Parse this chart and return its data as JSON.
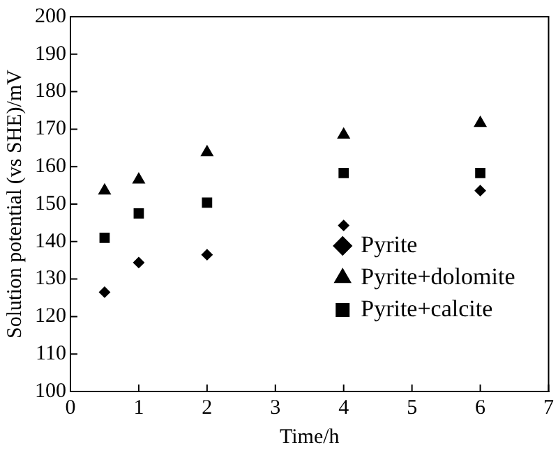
{
  "chart_data": {
    "type": "scatter",
    "xlabel": "Time/h",
    "ylabel": "Solution potential (vs SHE)/mV",
    "x": [
      0.5,
      1,
      2,
      4,
      6
    ],
    "xlim": [
      0,
      7
    ],
    "xticks": [
      0,
      1,
      2,
      3,
      4,
      5,
      6,
      7
    ],
    "ylim": [
      100,
      200
    ],
    "yticks": [
      100,
      110,
      120,
      130,
      140,
      150,
      160,
      170,
      180,
      190,
      200
    ],
    "grid": false,
    "legend": "bottom right",
    "series": [
      {
        "name": "Pyrite",
        "color": "#000000",
        "marker": "diamond",
        "values": [
          126.5,
          134.4,
          136.5,
          144.3,
          153.6
        ]
      },
      {
        "name": "Pyrite+dolomite",
        "color": "#000000",
        "marker": "triangle",
        "values": [
          153.6,
          156.5,
          163.8,
          168.5,
          171.6
        ]
      },
      {
        "name": "Pyrite+calcite",
        "color": "#000000",
        "marker": "square",
        "values": [
          141,
          147.5,
          150.4,
          158.3,
          158.3
        ]
      }
    ]
  }
}
